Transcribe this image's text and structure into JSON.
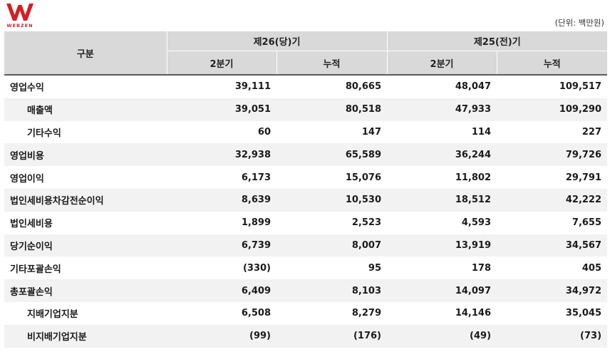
{
  "brand": {
    "name": "WEBZEN",
    "color": "#d21f26"
  },
  "unit_note": "(단위: 백만원)",
  "header": {
    "gubun": "구분",
    "period_current": "제26(당)기",
    "period_prior": "제25(전)기",
    "col_q2": "2분기",
    "col_cum": "누적"
  },
  "rows": [
    {
      "label": "영업수익",
      "indent": false,
      "values": [
        "39,111",
        "80,665",
        "48,047",
        "109,517"
      ]
    },
    {
      "label": "매출액",
      "indent": true,
      "values": [
        "39,051",
        "80,518",
        "47,933",
        "109,290"
      ]
    },
    {
      "label": "기타수익",
      "indent": true,
      "values": [
        "60",
        "147",
        "114",
        "227"
      ]
    },
    {
      "label": "영업비용",
      "indent": false,
      "values": [
        "32,938",
        "65,589",
        "36,244",
        "79,726"
      ]
    },
    {
      "label": "영업이익",
      "indent": false,
      "values": [
        "6,173",
        "15,076",
        "11,802",
        "29,791"
      ]
    },
    {
      "label": "법인세비용차감전순이익",
      "indent": false,
      "values": [
        "8,639",
        "10,530",
        "18,512",
        "42,222"
      ]
    },
    {
      "label": "법인세비용",
      "indent": false,
      "values": [
        "1,899",
        "2,523",
        "4,593",
        "7,655"
      ]
    },
    {
      "label": "당기순이익",
      "indent": false,
      "values": [
        "6,739",
        "8,007",
        "13,919",
        "34,567"
      ]
    },
    {
      "label": "기타포괄손익",
      "indent": false,
      "values": [
        "(330)",
        "95",
        "178",
        "405"
      ]
    },
    {
      "label": "총포괄손익",
      "indent": false,
      "values": [
        "6,409",
        "8,103",
        "14,097",
        "34,972"
      ]
    },
    {
      "label": "지배기업지분",
      "indent": true,
      "values": [
        "6,508",
        "8,279",
        "14,146",
        "35,045"
      ]
    },
    {
      "label": "비지배기업지분",
      "indent": true,
      "values": [
        "(99)",
        "(176)",
        "(49)",
        "(73)"
      ]
    }
  ]
}
